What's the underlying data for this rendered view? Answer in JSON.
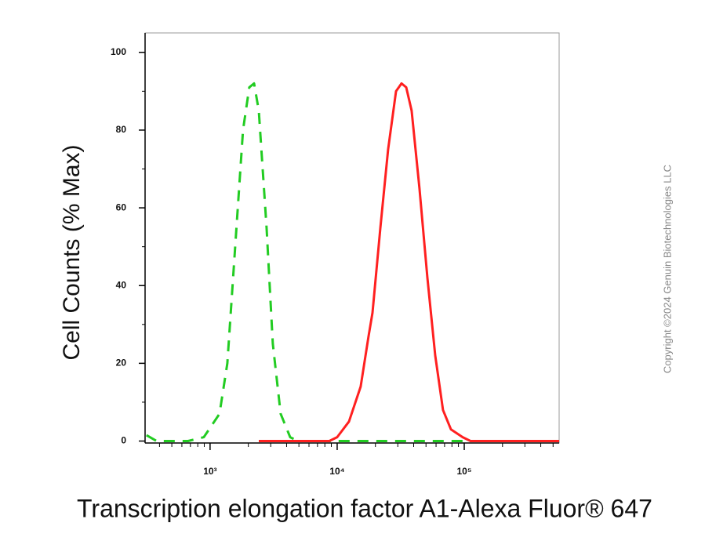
{
  "chart_data": {
    "type": "line",
    "xlabel": "Transcription elongation factor A1-Alexa Fluor® 647",
    "ylabel": "Cell Counts (% Max)",
    "watermark": "Copyright ©2024 Genuin Biotechnologies LLC",
    "xscale": "log",
    "xlim": [
      308,
      558000
    ],
    "ylim": [
      -0.5,
      105
    ],
    "xticks": [
      {
        "value": 1000,
        "label": "10³"
      },
      {
        "value": 10000,
        "label": "10⁴"
      },
      {
        "value": 100000,
        "label": "10⁵"
      }
    ],
    "xminorticks": [
      400,
      500,
      600,
      700,
      800,
      900,
      2000,
      3000,
      4000,
      5000,
      6000,
      7000,
      8000,
      9000,
      20000,
      30000,
      40000,
      50000,
      60000,
      70000,
      80000,
      90000,
      200000,
      300000,
      400000,
      500000
    ],
    "yticks": [
      0,
      20,
      40,
      60,
      80,
      100
    ],
    "yminorticks": [
      10,
      30,
      50,
      70,
      90
    ],
    "series": [
      {
        "color": "#22cc22",
        "dash": true,
        "x": [
          316,
          380,
          671,
          893,
          1186,
          1367,
          1577,
          1817,
          2036,
          2218,
          2417,
          2781,
          3118,
          3594,
          4266,
          4914,
          112000
        ],
        "values": [
          1.5,
          0,
          0,
          1,
          7,
          20,
          50,
          80,
          91,
          92,
          85,
          55,
          25,
          7,
          1,
          0,
          0
        ]
      },
      {
        "color": "#ff2020",
        "dash": false,
        "x": [
          2417,
          8670,
          10000,
          12380,
          15310,
          17660,
          18970,
          21880,
          25180,
          29030,
          32070,
          34930,
          38570,
          44440,
          51260,
          59150,
          68070,
          78520,
          97240,
          112000,
          558000
        ],
        "values": [
          0,
          0,
          1,
          5,
          14,
          27,
          33,
          55,
          75,
          90,
          92,
          91,
          85,
          65,
          42,
          22,
          8,
          3,
          1,
          0,
          0
        ]
      }
    ]
  }
}
